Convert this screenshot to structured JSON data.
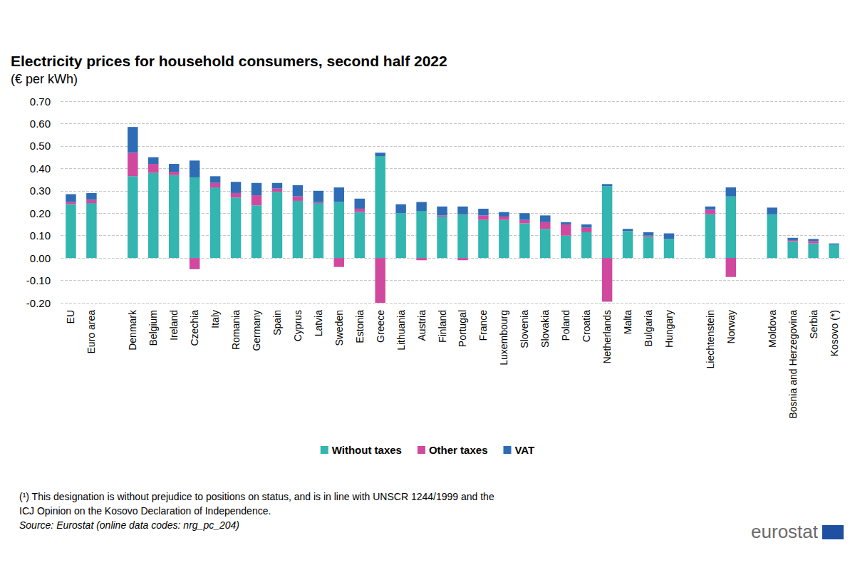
{
  "chart_data": {
    "type": "bar",
    "title": "Electricity prices for household consumers, second half 2022",
    "subtitle": "(€ per kWh)",
    "footnote": "(¹) This designation is without prejudice to positions on status, and is in line with UNSCR 1244/1999 and the ICJ Opinion on the Kosovo Declaration of Independence.",
    "source": "Source: Eurostat (online data codes: nrg_pc_204)",
    "logo_text": "eurostat",
    "categories": [
      "EU",
      "Euro area",
      null,
      "Denmark",
      "Belgium",
      "Ireland",
      "Czechia",
      "Italy",
      "Romania",
      "Germany",
      "Spain",
      "Cyprus",
      "Latvia",
      "Sweden",
      "Estonia",
      "Greece",
      "Lithuania",
      "Austria",
      "Finland",
      "Portugal",
      "France",
      "Luxembourg",
      "Slovenia",
      "Slovakia",
      "Poland",
      "Croatia",
      "Netherlands",
      "Malta",
      "Bulgaria",
      "Hungary",
      null,
      "Liechtenstein",
      "Norway",
      null,
      "Moldova",
      "Bosnia and Herzegovina",
      "Serbia",
      "Kosovo (*)"
    ],
    "series": [
      {
        "name": "Without taxes",
        "color": "#33b5b0",
        "values": [
          0.24,
          0.245,
          null,
          0.365,
          0.38,
          0.37,
          0.36,
          0.315,
          0.27,
          0.235,
          0.295,
          0.255,
          0.245,
          0.25,
          0.205,
          0.455,
          0.2,
          0.21,
          0.185,
          0.195,
          0.17,
          0.17,
          0.155,
          0.13,
          0.1,
          0.115,
          0.32,
          0.12,
          0.095,
          0.085,
          null,
          0.195,
          0.275,
          null,
          0.195,
          0.075,
          0.065,
          0.06
        ]
      },
      {
        "name": "Other taxes",
        "color": "#d0499f",
        "values": [
          0.01,
          0.015,
          null,
          0.105,
          0.04,
          0.015,
          -0.05,
          0.02,
          0.02,
          0.045,
          0.015,
          0.02,
          0.005,
          -0.04,
          0.015,
          -0.2,
          0.0,
          -0.01,
          0.005,
          -0.01,
          0.02,
          0.015,
          0.015,
          0.03,
          0.05,
          0.02,
          -0.195,
          0.0,
          0.005,
          0.0,
          null,
          0.02,
          -0.085,
          null,
          0.0,
          0.005,
          0.01,
          0.0
        ]
      },
      {
        "name": "VAT",
        "color": "#2e6db5",
        "values": [
          0.035,
          0.03,
          null,
          0.115,
          0.03,
          0.035,
          0.075,
          0.03,
          0.05,
          0.055,
          0.025,
          0.05,
          0.05,
          0.065,
          0.045,
          0.015,
          0.04,
          0.04,
          0.04,
          0.035,
          0.03,
          0.02,
          0.03,
          0.03,
          0.01,
          0.015,
          0.01,
          0.01,
          0.015,
          0.025,
          null,
          0.015,
          0.04,
          null,
          0.03,
          0.01,
          0.01,
          0.005
        ]
      }
    ],
    "ylim": [
      -0.2,
      0.7
    ],
    "yticks": [
      {
        "value": -0.2,
        "label": "-0.20"
      },
      {
        "value": -0.1,
        "label": "-0.10"
      },
      {
        "value": 0,
        "label": "0.00"
      },
      {
        "value": 0.1,
        "label": "0.10"
      },
      {
        "value": 0.2,
        "label": "0.20"
      },
      {
        "value": 0.3,
        "label": "0.30"
      },
      {
        "value": 0.4,
        "label": "0.40"
      },
      {
        "value": 0.5,
        "label": "0.50"
      },
      {
        "value": 0.6,
        "label": "0.60"
      },
      {
        "value": 0.7,
        "label": "0.70"
      }
    ],
    "stacked": true,
    "grid": true,
    "legend": "bottom"
  }
}
